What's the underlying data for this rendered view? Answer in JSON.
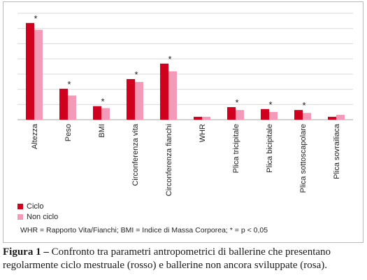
{
  "chart_data": {
    "type": "bar",
    "categories": [
      "Altezza",
      "Peso",
      "BMI",
      "Circonferenza vita",
      "Circonferenza fianchi",
      "WHR",
      "Plica tricipitale",
      "Plica bicipitale",
      "Plica sottoscapolare",
      "Plica sovrailiaca"
    ],
    "series": [
      {
        "name": "Ciclo",
        "color": "#d2001f",
        "values": [
          100,
          32,
          14,
          42,
          58,
          3,
          13,
          11,
          10,
          3
        ]
      },
      {
        "name": "Non ciclo",
        "color": "#f39ab8",
        "values": [
          93,
          25,
          12,
          39,
          50,
          3,
          10,
          8,
          7,
          5
        ]
      }
    ],
    "significant": [
      true,
      true,
      true,
      true,
      true,
      false,
      true,
      true,
      true,
      false
    ],
    "significance_marker": "*",
    "ylim": [
      0,
      110
    ],
    "grid": true,
    "legend_position": "bottom-left"
  },
  "note": "WHR = Rapporto Vita/Fianchi; BMI = Indice di Massa Corporea; * = p < 0,05",
  "caption": {
    "label": "Figura 1 –",
    "text": " Confronto tra parametri antropometrici di ballerine che presentano regolarmente ciclo mestruale (rosso) e ballerine non ancora sviluppate (rosa)."
  }
}
